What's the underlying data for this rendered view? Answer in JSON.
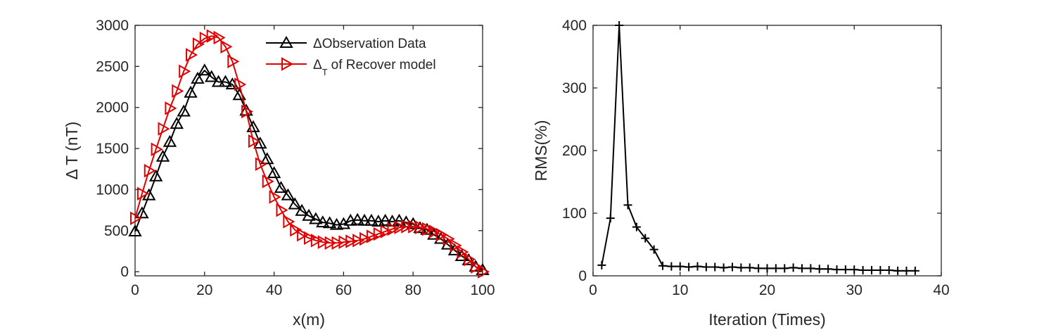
{
  "chart_data": [
    {
      "type": "line",
      "xlabel": "x(m)",
      "ylabel": "Δ T (nT)",
      "xlim": [
        0,
        100
      ],
      "ylim": [
        -50,
        3000
      ],
      "xticks": [
        0,
        20,
        40,
        60,
        80,
        100
      ],
      "yticks": [
        0,
        500,
        1000,
        1500,
        2000,
        2500,
        3000
      ],
      "grid": false,
      "legend_position": "top-right",
      "series": [
        {
          "name": "Observation Data",
          "color": "#000000",
          "marker": "triangle-up",
          "x": [
            0,
            2,
            4,
            6,
            8,
            10,
            12,
            14,
            16,
            18,
            20,
            22,
            24,
            26,
            28,
            30,
            32,
            34,
            36,
            38,
            40,
            42,
            44,
            46,
            48,
            50,
            52,
            54,
            56,
            58,
            60,
            62,
            64,
            66,
            68,
            70,
            72,
            74,
            76,
            78,
            80,
            82,
            84,
            86,
            88,
            90,
            92,
            94,
            96,
            98,
            100
          ],
          "y": [
            490,
            710,
            930,
            1160,
            1400,
            1580,
            1800,
            1950,
            2180,
            2350,
            2450,
            2370,
            2310,
            2310,
            2280,
            2150,
            1960,
            1760,
            1560,
            1370,
            1200,
            1020,
            930,
            820,
            740,
            680,
            640,
            600,
            590,
            570,
            580,
            620,
            630,
            620,
            620,
            610,
            620,
            610,
            620,
            600,
            580,
            530,
            510,
            450,
            400,
            330,
            260,
            190,
            140,
            60,
            20
          ]
        },
        {
          "name": "of Recover model",
          "color": "#e00000",
          "marker": "triangle-right",
          "x": [
            0,
            2,
            4,
            6,
            8,
            10,
            12,
            14,
            16,
            18,
            20,
            22,
            24,
            26,
            28,
            30,
            32,
            34,
            36,
            38,
            40,
            42,
            44,
            46,
            48,
            50,
            52,
            54,
            56,
            58,
            60,
            62,
            64,
            66,
            68,
            70,
            72,
            74,
            76,
            78,
            80,
            82,
            84,
            86,
            88,
            90,
            92,
            94,
            96,
            98,
            100
          ],
          "y": [
            650,
            950,
            1230,
            1490,
            1740,
            1990,
            2200,
            2440,
            2640,
            2770,
            2840,
            2870,
            2850,
            2740,
            2560,
            2280,
            1950,
            1590,
            1310,
            1100,
            910,
            750,
            610,
            510,
            450,
            410,
            380,
            360,
            350,
            350,
            360,
            370,
            380,
            400,
            430,
            460,
            490,
            520,
            540,
            550,
            550,
            540,
            520,
            490,
            450,
            400,
            320,
            240,
            150,
            60,
            0
          ]
        }
      ],
      "legend": [
        {
          "symbol": "Δ",
          "subscript": "",
          "label": "Observation Data"
        },
        {
          "symbol": "Δ",
          "subscript": "T",
          "label": "of Recover model"
        }
      ]
    },
    {
      "type": "line",
      "xlabel": "Iteration (Times)",
      "ylabel": "RMS(%)",
      "xlim": [
        0,
        40
      ],
      "ylim": [
        0,
        400
      ],
      "xticks": [
        0,
        10,
        20,
        30,
        40
      ],
      "yticks": [
        0,
        100,
        200,
        300,
        400
      ],
      "grid": false,
      "series": [
        {
          "name": "",
          "color": "#000000",
          "marker": "plus",
          "x": [
            1,
            2,
            3,
            4,
            5,
            6,
            7,
            8,
            9,
            10,
            11,
            12,
            13,
            14,
            15,
            16,
            17,
            18,
            19,
            20,
            21,
            22,
            23,
            24,
            25,
            26,
            27,
            28,
            29,
            30,
            31,
            32,
            33,
            34,
            35,
            36,
            37
          ],
          "y": [
            17,
            92,
            400,
            113,
            78,
            60,
            42,
            16,
            15,
            15,
            14,
            15,
            14,
            14,
            13,
            14,
            13,
            13,
            12,
            12,
            12,
            12,
            13,
            12,
            12,
            11,
            11,
            10,
            10,
            10,
            9,
            9,
            9,
            9,
            8,
            8,
            8
          ]
        }
      ]
    }
  ]
}
